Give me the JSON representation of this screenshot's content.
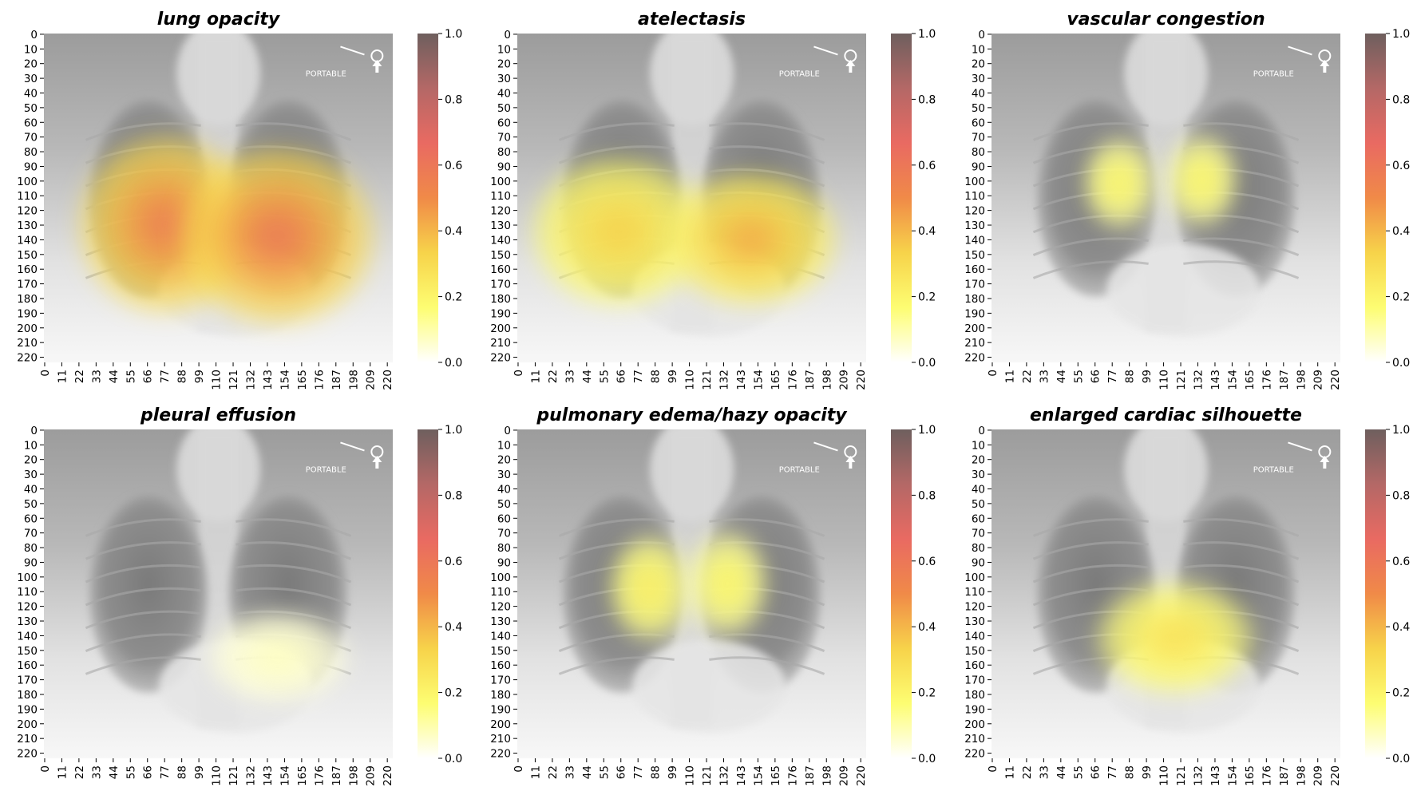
{
  "colors": {
    "colormap": [
      "#ffffff",
      "#fdfd72",
      "#f7d34a",
      "#f08a48",
      "#e96a62",
      "#b46866",
      "#6e5f5e"
    ],
    "xray_background": "#9a9a9a"
  },
  "image_marker": "PORTABLE",
  "chart_data": [
    {
      "type": "heatmap",
      "title": "lung opacity",
      "x_ticks": [
        "0",
        "11",
        "22",
        "33",
        "44",
        "55",
        "66",
        "77",
        "88",
        "99",
        "110",
        "121",
        "132",
        "143",
        "154",
        "165",
        "176",
        "187",
        "198",
        "209",
        "220"
      ],
      "y_ticks": [
        "0",
        "10",
        "20",
        "30",
        "40",
        "50",
        "60",
        "70",
        "80",
        "90",
        "100",
        "110",
        "120",
        "130",
        "140",
        "150",
        "160",
        "170",
        "180",
        "190",
        "200",
        "210",
        "220"
      ],
      "xlim": [
        0,
        224
      ],
      "ylim": [
        0,
        224
      ],
      "colorbar": {
        "min": 0.0,
        "max": 1.0,
        "ticks": [
          "0.0",
          "0.2",
          "0.4",
          "0.6",
          "0.8",
          "1.0"
        ]
      },
      "hotspots": [
        {
          "cx": 78,
          "cy": 130,
          "rx": 55,
          "ry": 60,
          "peak": 0.6
        },
        {
          "cx": 150,
          "cy": 138,
          "rx": 62,
          "ry": 60,
          "peak": 0.62
        }
      ]
    },
    {
      "type": "heatmap",
      "title": "atelectasis",
      "x_ticks": [
        "0",
        "11",
        "22",
        "33",
        "44",
        "55",
        "66",
        "77",
        "88",
        "99",
        "110",
        "121",
        "132",
        "143",
        "154",
        "165",
        "176",
        "187",
        "198",
        "209",
        "220"
      ],
      "y_ticks": [
        "0",
        "10",
        "20",
        "30",
        "40",
        "50",
        "60",
        "70",
        "80",
        "90",
        "100",
        "110",
        "120",
        "130",
        "140",
        "150",
        "160",
        "170",
        "180",
        "190",
        "200",
        "210",
        "220"
      ],
      "xlim": [
        0,
        224
      ],
      "ylim": [
        0,
        224
      ],
      "colorbar": {
        "min": 0.0,
        "max": 1.0,
        "ticks": [
          "0.0",
          "0.2",
          "0.4",
          "0.6",
          "0.8",
          "1.0"
        ]
      },
      "hotspots": [
        {
          "cx": 65,
          "cy": 135,
          "rx": 55,
          "ry": 50,
          "peak": 0.35
        },
        {
          "cx": 150,
          "cy": 140,
          "rx": 55,
          "ry": 45,
          "peak": 0.45
        }
      ]
    },
    {
      "type": "heatmap",
      "title": "vascular congestion",
      "x_ticks": [
        "0",
        "11",
        "22",
        "33",
        "44",
        "55",
        "66",
        "77",
        "88",
        "99",
        "110",
        "121",
        "132",
        "143",
        "154",
        "165",
        "176",
        "187",
        "198",
        "209",
        "220"
      ],
      "y_ticks": [
        "0",
        "10",
        "20",
        "30",
        "40",
        "50",
        "60",
        "70",
        "80",
        "90",
        "100",
        "110",
        "120",
        "130",
        "140",
        "150",
        "160",
        "170",
        "180",
        "190",
        "200",
        "210",
        "220"
      ],
      "xlim": [
        0,
        224
      ],
      "ylim": [
        0,
        224
      ],
      "colorbar": {
        "min": 0.0,
        "max": 1.0,
        "ticks": [
          "0.0",
          "0.2",
          "0.4",
          "0.6",
          "0.8",
          "1.0"
        ]
      },
      "hotspots": [
        {
          "cx": 82,
          "cy": 102,
          "rx": 22,
          "ry": 30,
          "peak": 0.22
        },
        {
          "cx": 135,
          "cy": 100,
          "rx": 22,
          "ry": 30,
          "peak": 0.22
        }
      ]
    },
    {
      "type": "heatmap",
      "title": "pleural effusion",
      "x_ticks": [
        "0",
        "11",
        "22",
        "33",
        "44",
        "55",
        "66",
        "77",
        "88",
        "99",
        "110",
        "121",
        "132",
        "143",
        "154",
        "165",
        "176",
        "187",
        "198",
        "209",
        "220"
      ],
      "y_ticks": [
        "0",
        "10",
        "20",
        "30",
        "40",
        "50",
        "60",
        "70",
        "80",
        "90",
        "100",
        "110",
        "120",
        "130",
        "140",
        "150",
        "160",
        "170",
        "180",
        "190",
        "200",
        "210",
        "220"
      ],
      "xlim": [
        0,
        224
      ],
      "ylim": [
        0,
        224
      ],
      "colorbar": {
        "min": 0.0,
        "max": 1.0,
        "ticks": [
          "0.0",
          "0.2",
          "0.4",
          "0.6",
          "0.8",
          "1.0"
        ]
      },
      "hotspots": [
        {
          "cx": 150,
          "cy": 155,
          "rx": 45,
          "ry": 30,
          "peak": 0.08
        }
      ]
    },
    {
      "type": "heatmap",
      "title": "pulmonary edema/hazy opacity",
      "x_ticks": [
        "0",
        "11",
        "22",
        "33",
        "44",
        "55",
        "66",
        "77",
        "88",
        "99",
        "110",
        "121",
        "132",
        "143",
        "154",
        "165",
        "176",
        "187",
        "198",
        "209",
        "220"
      ],
      "y_ticks": [
        "0",
        "10",
        "20",
        "30",
        "40",
        "50",
        "60",
        "70",
        "80",
        "90",
        "100",
        "110",
        "120",
        "130",
        "140",
        "150",
        "160",
        "170",
        "180",
        "190",
        "200",
        "210",
        "220"
      ],
      "xlim": [
        0,
        224
      ],
      "ylim": [
        0,
        224
      ],
      "colorbar": {
        "min": 0.0,
        "max": 1.0,
        "ticks": [
          "0.0",
          "0.2",
          "0.4",
          "0.6",
          "0.8",
          "1.0"
        ]
      },
      "hotspots": [
        {
          "cx": 85,
          "cy": 108,
          "rx": 25,
          "ry": 35,
          "peak": 0.25
        },
        {
          "cx": 135,
          "cy": 105,
          "rx": 25,
          "ry": 35,
          "peak": 0.22
        }
      ]
    },
    {
      "type": "heatmap",
      "title": "enlarged cardiac silhouette",
      "x_ticks": [
        "0",
        "11",
        "22",
        "33",
        "44",
        "55",
        "66",
        "77",
        "88",
        "99",
        "110",
        "121",
        "132",
        "143",
        "154",
        "165",
        "176",
        "187",
        "198",
        "209",
        "220"
      ],
      "y_ticks": [
        "0",
        "10",
        "20",
        "30",
        "40",
        "50",
        "60",
        "70",
        "80",
        "90",
        "100",
        "110",
        "120",
        "130",
        "140",
        "150",
        "160",
        "170",
        "180",
        "190",
        "200",
        "210",
        "220"
      ],
      "xlim": [
        0,
        224
      ],
      "ylim": [
        0,
        224
      ],
      "colorbar": {
        "min": 0.0,
        "max": 1.0,
        "ticks": [
          "0.0",
          "0.2",
          "0.4",
          "0.6",
          "0.8",
          "1.0"
        ]
      },
      "hotspots": [
        {
          "cx": 118,
          "cy": 142,
          "rx": 50,
          "ry": 38,
          "peak": 0.3
        }
      ]
    }
  ]
}
